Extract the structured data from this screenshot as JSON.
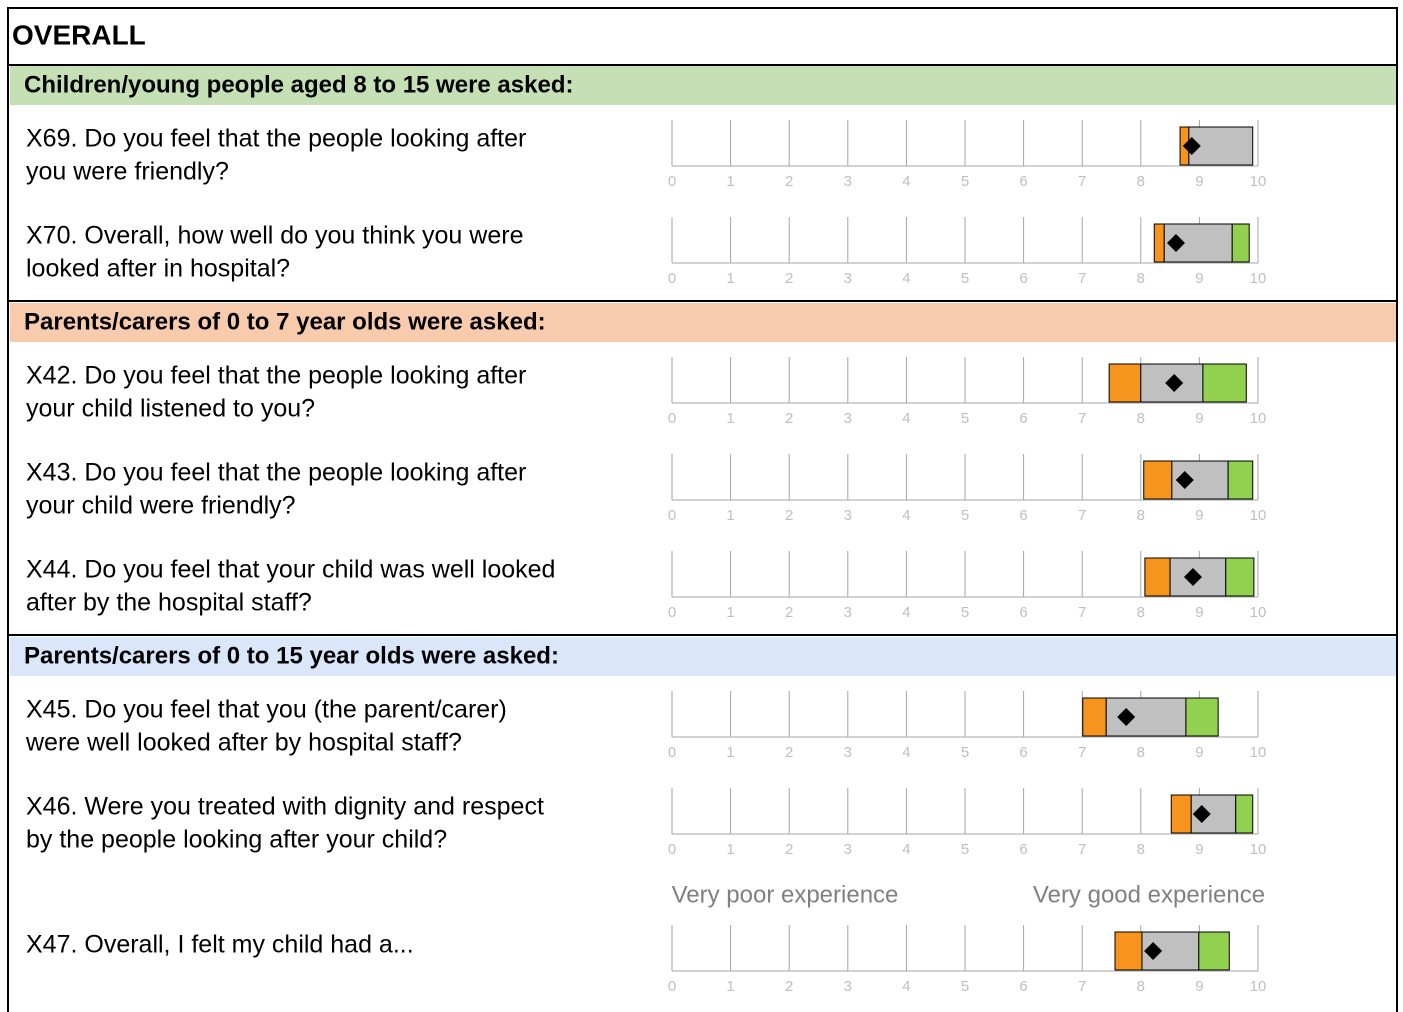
{
  "title": "OVERALL",
  "ticks": [
    0,
    1,
    2,
    3,
    4,
    5,
    6,
    7,
    8,
    9,
    10
  ],
  "xlim": [
    0,
    10
  ],
  "colors": {
    "low": "#f7941d",
    "mid": "#c0c0c0",
    "high": "#92d050",
    "score": "#000000"
  },
  "sections": [
    {
      "heading": "Children/young people aged 8 to 15 were asked:",
      "color": "#c5e0b4",
      "items": [
        {
          "lines": [
            "X69. Do you feel that the people looking after",
            "you were friendly?"
          ],
          "bands": [
            8.67,
            8.82,
            9.91,
            9.91
          ],
          "score": 8.87
        },
        {
          "lines": [
            "X70. Overall, how well do you think you were",
            "looked after in hospital?"
          ],
          "bands": [
            8.23,
            8.4,
            9.56,
            9.85
          ],
          "score": 8.6
        }
      ]
    },
    {
      "heading": "Parents/carers of 0 to 7 year olds were asked:",
      "color": "#f8cbad",
      "items": [
        {
          "lines": [
            "X42. Do you feel that the people looking after",
            "your child listened to you?"
          ],
          "bands": [
            7.46,
            8.0,
            9.06,
            9.8
          ],
          "score": 8.57
        },
        {
          "lines": [
            "X43. Do you feel that the people looking after",
            "your child were friendly?"
          ],
          "bands": [
            8.05,
            8.53,
            9.49,
            9.91
          ],
          "score": 8.75
        },
        {
          "lines": [
            "X44. Do you feel that your child was well looked",
            "after by the hospital staff?"
          ],
          "bands": [
            8.07,
            8.5,
            9.45,
            9.93
          ],
          "score": 8.89
        }
      ]
    },
    {
      "heading": "Parents/carers of 0 to 15 year olds were asked:",
      "color": "#dae7fb",
      "items": [
        {
          "lines": [
            "X45. Do you feel that you (the parent/carer)",
            "were well looked after by hospital staff?"
          ],
          "bands": [
            7.01,
            7.41,
            8.77,
            9.32
          ],
          "score": 7.75
        },
        {
          "lines": [
            "X46. Were you treated with dignity and respect",
            "by the people looking after your child?"
          ],
          "bands": [
            8.52,
            8.86,
            9.62,
            9.91
          ],
          "score": 9.04
        },
        {
          "lines": [
            "X47. Overall, I felt my child had a..."
          ],
          "scale_labels": [
            "Very poor experience",
            "Very good experience"
          ],
          "bands": [
            7.56,
            8.02,
            8.99,
            9.51
          ],
          "score": 8.21
        }
      ]
    }
  ]
}
